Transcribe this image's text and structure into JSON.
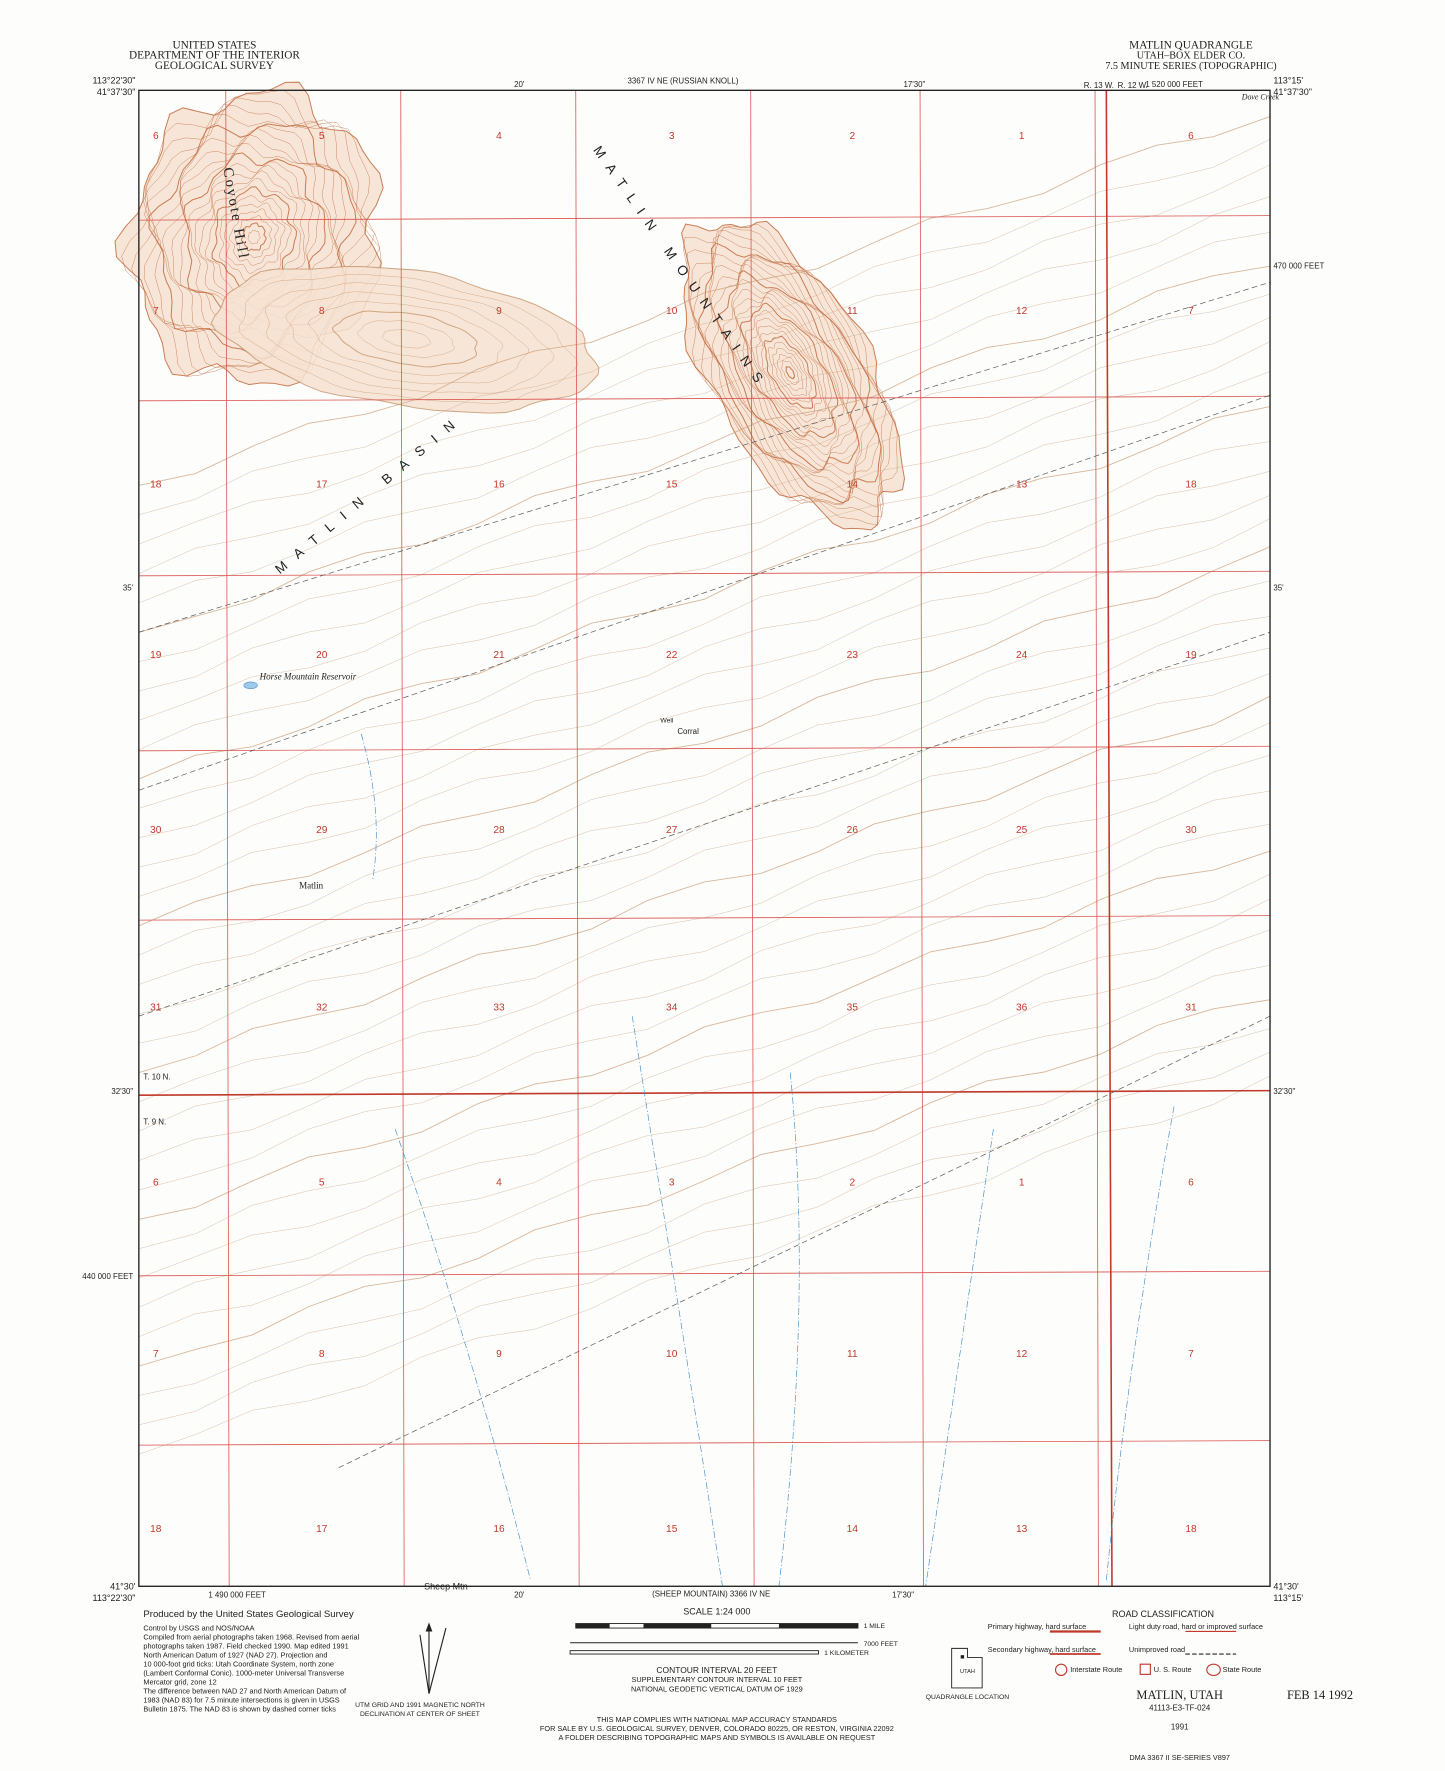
{
  "header": {
    "left": [
      "UNITED STATES",
      "DEPARTMENT OF THE INTERIOR",
      "GEOLOGICAL SURVEY"
    ],
    "right": [
      "MATLIN QUADRANGLE",
      "UTAH–BOX ELDER CO.",
      "7.5 MINUTE SERIES (TOPOGRAPHIC)"
    ]
  },
  "corners": {
    "top_left": [
      "113°22'30\"",
      "41°37'30\""
    ],
    "top_right": [
      "113°15'",
      "41°37'30\""
    ],
    "bottom_left": [
      "41°30'",
      "113°22'30\""
    ],
    "bottom_right": [
      "41°30'",
      "113°15'"
    ]
  },
  "edge_labels": {
    "top": [
      "20'",
      "17'30\"",
      "1 520 000 FEET",
      "3367 IV NE (RUSSIAN KNOLL)"
    ],
    "left": [
      "35'",
      "32'30\"",
      "440 000 FEET"
    ],
    "right": [
      "35'",
      "32'30\"",
      "470 000 FEET"
    ],
    "bottom": [
      "1 490 000 FEET",
      "20'",
      "17'30\"",
      "(SHEEP MOUNTAIN) 3366 IV NE"
    ]
  },
  "township": [
    "T. 10 N.",
    "T. 9 N.",
    "R. 13 W.",
    "R. 12 W."
  ],
  "sections": [
    [
      6,
      5,
      4,
      3,
      2,
      1,
      6
    ],
    [
      7,
      8,
      9,
      10,
      11,
      12,
      7
    ],
    [
      18,
      17,
      16,
      15,
      14,
      13,
      18
    ],
    [
      19,
      20,
      21,
      22,
      23,
      24,
      19
    ],
    [
      30,
      29,
      28,
      27,
      26,
      25,
      30
    ],
    [
      31,
      32,
      33,
      34,
      35,
      36,
      31
    ],
    [
      6,
      5,
      4,
      3,
      2,
      1,
      6
    ],
    [
      7,
      8,
      9,
      10,
      11,
      12,
      7
    ],
    [
      18,
      17,
      16,
      15,
      14,
      13,
      18
    ]
  ],
  "places": [
    "Coyote Hill",
    "MATLIN MOUNTAINS",
    "MATLIN BASIN",
    "Horse Mountain Reservoir",
    "Matlin",
    "Corral",
    "Well",
    "Sheep Mtn",
    "Dove Creek"
  ],
  "footer": {
    "credits": [
      "Produced by the United States Geological Survey",
      "Control by USGS and NOS/NOAA",
      "Compiled from aerial photographs taken 1968. Revised from aerial",
      "photographs taken 1987. Field checked 1990. Map edited 1991",
      "North American Datum of 1927 (NAD 27). Projection and",
      "10 000-foot grid ticks: Utah Coordinate System, north zone",
      "(Lambert Conformal Conic). 1000-meter Universal Transverse",
      "Mercator grid, zone 12",
      "The difference between NAD 27 and North American Datum of",
      "1983 (NAD 83) for 7.5 minute intersections is given in USGS",
      "Bulletin 1875. The NAD 83 is shown by dashed corner ticks"
    ],
    "declination": [
      "UTM GRID AND 1991 MAGNETIC NORTH",
      "DECLINATION AT CENTER OF SHEET"
    ],
    "scale": [
      "SCALE 1:24 000",
      "1 MILE",
      "7000 FEET",
      "1 KILOMETER"
    ],
    "contour": [
      "CONTOUR INTERVAL 20 FEET",
      "SUPPLEMENTARY CONTOUR INTERVAL 10 FEET",
      "NATIONAL GEODETIC VERTICAL DATUM OF 1929"
    ],
    "standards": [
      "THIS MAP COMPLIES WITH NATIONAL MAP ACCURACY STANDARDS",
      "FOR SALE BY U.S. GEOLOGICAL SURVEY, DENVER, COLORADO 80225, OR RESTON, VIRGINIA 22092",
      "A FOLDER DESCRIBING TOPOGRAPHIC MAPS AND SYMBOLS IS AVAILABLE ON REQUEST"
    ],
    "location": [
      "UTAH",
      "QUADRANGLE LOCATION"
    ],
    "road_classification": {
      "title": "ROAD CLASSIFICATION",
      "items": [
        "Primary highway, hard surface",
        "Light duty road, hard or improved surface",
        "Secondary highway, hard surface",
        "Unimproved road"
      ],
      "routes": [
        "Interstate Route",
        "U. S. Route",
        "State Route"
      ]
    },
    "name": "MATLIN, UTAH",
    "code": "41113-E3-TF-024",
    "year": "1991",
    "series": "DMA 3367 II SE-SERIES V897",
    "stamp": "FEB 14 1992"
  }
}
